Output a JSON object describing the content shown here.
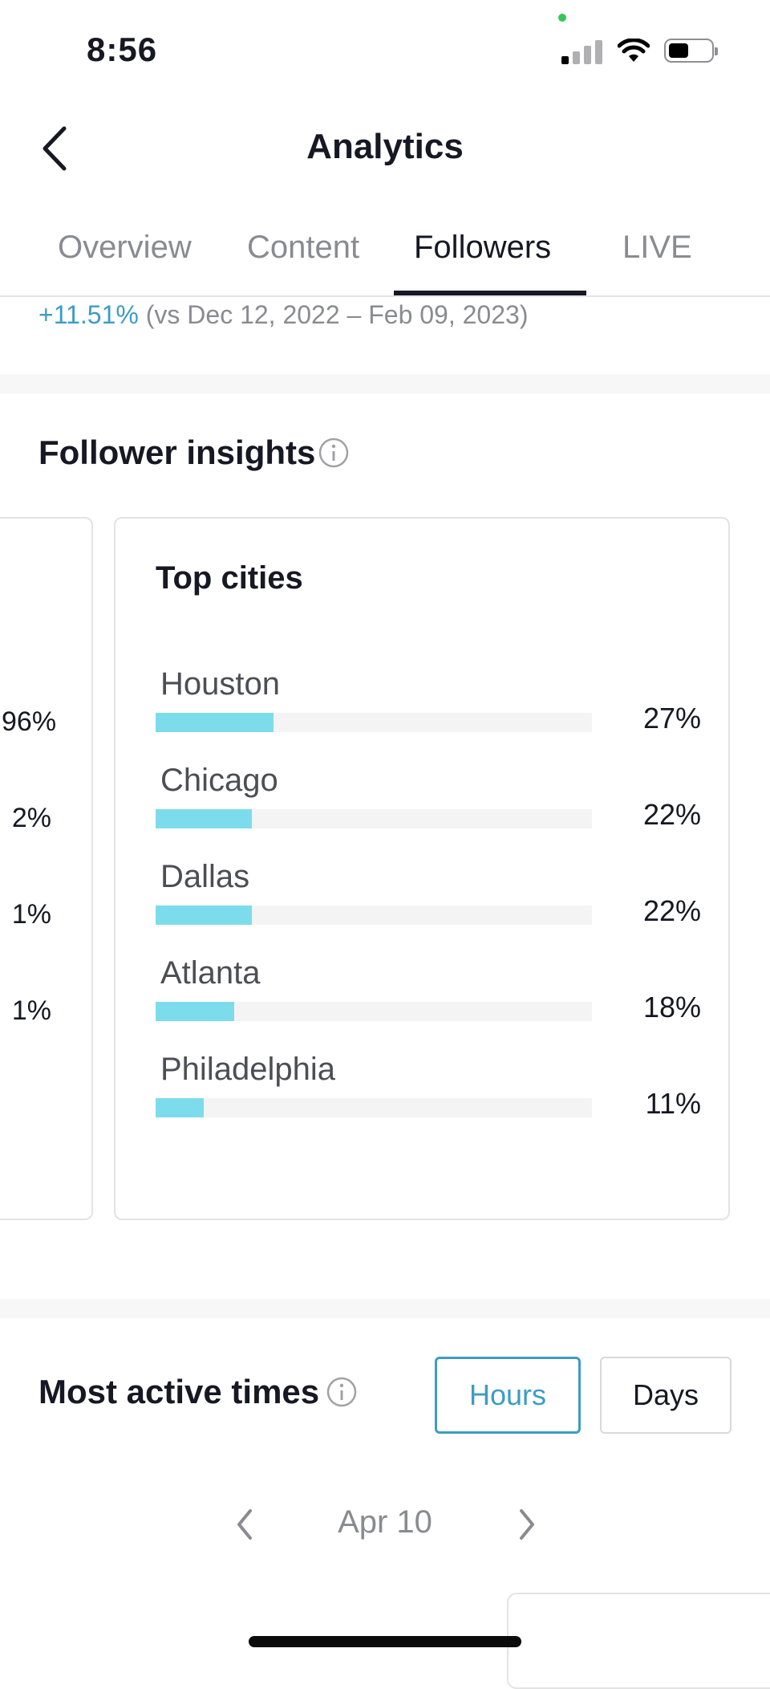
{
  "status_bar": {
    "time": "8:56"
  },
  "header": {
    "title": "Analytics"
  },
  "tabs": [
    {
      "label": "Overview",
      "active": false
    },
    {
      "label": "Content",
      "active": false
    },
    {
      "label": "Followers",
      "active": true
    },
    {
      "label": "LIVE",
      "active": false
    }
  ],
  "growth": {
    "percent": "+11.51%",
    "comparison": "(vs Dec 12, 2022 – Feb 09, 2023)"
  },
  "follower_insights": {
    "title": "Follower insights",
    "left_card_values": [
      "96%",
      "2%",
      "1%",
      "1%"
    ],
    "top_cities": {
      "title": "Top cities",
      "cities": [
        {
          "name": "Houston",
          "percent": "27%",
          "value": 0.27
        },
        {
          "name": "Chicago",
          "percent": "22%",
          "value": 0.22
        },
        {
          "name": "Dallas",
          "percent": "22%",
          "value": 0.22
        },
        {
          "name": "Atlanta",
          "percent": "18%",
          "value": 0.18
        },
        {
          "name": "Philadelphia",
          "percent": "11%",
          "value": 0.11
        }
      ]
    }
  },
  "most_active_times": {
    "title": "Most active times",
    "toggle": {
      "hours_label": "Hours",
      "days_label": "Days",
      "selected": "Hours"
    },
    "date": "Apr 10"
  },
  "colors": {
    "accent": "#3d9cc4",
    "bar": "#7ddcec",
    "text": "#161823",
    "muted": "#8a8b91"
  }
}
